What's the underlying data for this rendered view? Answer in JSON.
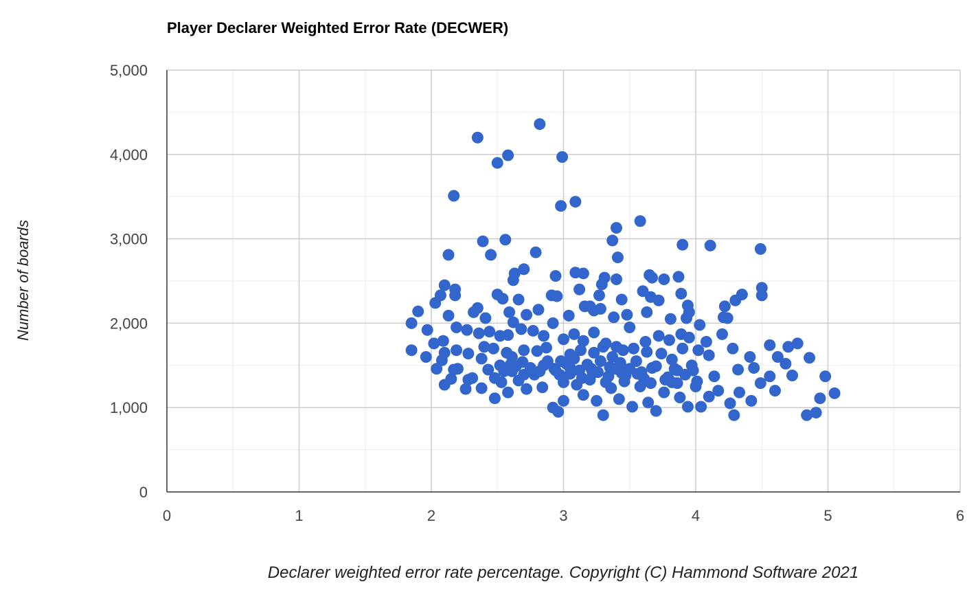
{
  "chart_data": {
    "type": "scatter",
    "title": "Player Declarer Weighted Error Rate (DECWER)",
    "xlabel": "Declarer weighted error rate percentage. Copyright (C) Hammond Software 2021",
    "ylabel": "Number of boards",
    "xlim": [
      0,
      6
    ],
    "ylim": [
      0,
      5000
    ],
    "x_ticks": [
      "0",
      "1",
      "2",
      "3",
      "4",
      "5",
      "6"
    ],
    "y_ticks": [
      "0",
      "1,000",
      "2,000",
      "3,000",
      "4,000",
      "5,000"
    ],
    "grid": true,
    "legend": "none",
    "point_color": "#3366cc",
    "points": [
      [
        2.35,
        4200
      ],
      [
        2.82,
        4360
      ],
      [
        2.5,
        3900
      ],
      [
        2.58,
        3990
      ],
      [
        2.99,
        3970
      ],
      [
        2.98,
        3390
      ],
      [
        3.09,
        3440
      ],
      [
        2.17,
        3510
      ],
      [
        3.58,
        3210
      ],
      [
        3.4,
        3130
      ],
      [
        2.56,
        2990
      ],
      [
        2.39,
        2970
      ],
      [
        3.37,
        2980
      ],
      [
        3.9,
        2930
      ],
      [
        4.11,
        2920
      ],
      [
        4.49,
        2880
      ],
      [
        2.13,
        2810
      ],
      [
        2.45,
        2810
      ],
      [
        2.79,
        2840
      ],
      [
        3.41,
        2780
      ],
      [
        2.7,
        2640
      ],
      [
        2.63,
        2590
      ],
      [
        2.62,
        2510
      ],
      [
        2.94,
        2560
      ],
      [
        3.09,
        2600
      ],
      [
        3.15,
        2590
      ],
      [
        3.31,
        2540
      ],
      [
        3.4,
        2520
      ],
      [
        3.65,
        2570
      ],
      [
        3.67,
        2540
      ],
      [
        3.76,
        2520
      ],
      [
        3.87,
        2550
      ],
      [
        4.35,
        2340
      ],
      [
        4.5,
        2420
      ],
      [
        2.1,
        2450
      ],
      [
        2.18,
        2400
      ],
      [
        2.18,
        2330
      ],
      [
        2.07,
        2330
      ],
      [
        2.03,
        2240
      ],
      [
        2.5,
        2340
      ],
      [
        2.54,
        2290
      ],
      [
        2.66,
        2280
      ],
      [
        2.91,
        2330
      ],
      [
        2.95,
        2320
      ],
      [
        3.12,
        2400
      ],
      [
        3.29,
        2460
      ],
      [
        3.27,
        2330
      ],
      [
        3.44,
        2280
      ],
      [
        3.6,
        2380
      ],
      [
        3.66,
        2310
      ],
      [
        3.72,
        2270
      ],
      [
        3.89,
        2350
      ],
      [
        3.94,
        2210
      ],
      [
        4.22,
        2200
      ],
      [
        4.3,
        2270
      ],
      [
        4.5,
        2330
      ],
      [
        1.9,
        2140
      ],
      [
        2.13,
        2090
      ],
      [
        2.32,
        2130
      ],
      [
        2.35,
        2180
      ],
      [
        2.41,
        2060
      ],
      [
        2.59,
        2130
      ],
      [
        2.62,
        2010
      ],
      [
        2.72,
        2100
      ],
      [
        2.81,
        2160
      ],
      [
        2.92,
        2000
      ],
      [
        3.04,
        2090
      ],
      [
        3.16,
        2200
      ],
      [
        3.2,
        2200
      ],
      [
        3.23,
        2150
      ],
      [
        3.28,
        2170
      ],
      [
        3.38,
        2070
      ],
      [
        3.48,
        2100
      ],
      [
        3.63,
        2130
      ],
      [
        3.81,
        2050
      ],
      [
        3.93,
        2060
      ],
      [
        3.95,
        2130
      ],
      [
        4.03,
        1980
      ],
      [
        4.21,
        2070
      ],
      [
        4.24,
        2060
      ],
      [
        1.85,
        2000
      ],
      [
        1.97,
        1920
      ],
      [
        2.19,
        1950
      ],
      [
        2.27,
        1920
      ],
      [
        2.36,
        1880
      ],
      [
        2.44,
        1900
      ],
      [
        2.52,
        1850
      ],
      [
        2.58,
        1860
      ],
      [
        2.68,
        1930
      ],
      [
        2.77,
        1910
      ],
      [
        2.85,
        1850
      ],
      [
        3.0,
        1810
      ],
      [
        3.08,
        1870
      ],
      [
        3.15,
        1790
      ],
      [
        3.23,
        1890
      ],
      [
        3.32,
        1760
      ],
      [
        3.4,
        1720
      ],
      [
        3.5,
        1950
      ],
      [
        3.62,
        1780
      ],
      [
        3.72,
        1850
      ],
      [
        3.8,
        1800
      ],
      [
        3.89,
        1870
      ],
      [
        3.95,
        1830
      ],
      [
        4.08,
        1780
      ],
      [
        4.2,
        1870
      ],
      [
        1.85,
        1680
      ],
      [
        2.02,
        1760
      ],
      [
        2.09,
        1790
      ],
      [
        2.1,
        1650
      ],
      [
        2.19,
        1680
      ],
      [
        2.28,
        1640
      ],
      [
        2.4,
        1720
      ],
      [
        2.47,
        1700
      ],
      [
        2.57,
        1650
      ],
      [
        2.61,
        1600
      ],
      [
        2.7,
        1680
      ],
      [
        2.8,
        1670
      ],
      [
        2.87,
        1710
      ],
      [
        2.98,
        1550
      ],
      [
        3.05,
        1630
      ],
      [
        3.13,
        1680
      ],
      [
        3.23,
        1650
      ],
      [
        3.3,
        1720
      ],
      [
        3.37,
        1600
      ],
      [
        3.45,
        1680
      ],
      [
        3.53,
        1700
      ],
      [
        3.63,
        1660
      ],
      [
        3.74,
        1640
      ],
      [
        3.82,
        1570
      ],
      [
        3.9,
        1700
      ],
      [
        4.02,
        1680
      ],
      [
        4.1,
        1620
      ],
      [
        4.28,
        1700
      ],
      [
        4.41,
        1600
      ],
      [
        4.56,
        1740
      ],
      [
        4.7,
        1720
      ],
      [
        4.77,
        1760
      ],
      [
        1.96,
        1600
      ],
      [
        2.04,
        1460
      ],
      [
        2.1,
        1270
      ],
      [
        2.15,
        1340
      ],
      [
        2.2,
        1460
      ],
      [
        2.26,
        1220
      ],
      [
        2.31,
        1350
      ],
      [
        2.38,
        1230
      ],
      [
        2.43,
        1450
      ],
      [
        2.48,
        1110
      ],
      [
        2.53,
        1300
      ],
      [
        2.58,
        1180
      ],
      [
        2.64,
        1490
      ],
      [
        2.72,
        1220
      ],
      [
        2.78,
        1390
      ],
      [
        2.84,
        1240
      ],
      [
        2.92,
        1000
      ],
      [
        2.96,
        950
      ],
      [
        3.0,
        1080
      ],
      [
        3.05,
        1400
      ],
      [
        3.1,
        1270
      ],
      [
        3.15,
        1150
      ],
      [
        3.2,
        1330
      ],
      [
        3.25,
        1080
      ],
      [
        3.3,
        910
      ],
      [
        3.36,
        1230
      ],
      [
        3.42,
        1100
      ],
      [
        3.47,
        1380
      ],
      [
        3.52,
        1010
      ],
      [
        3.58,
        1250
      ],
      [
        3.64,
        1060
      ],
      [
        3.7,
        960
      ],
      [
        3.76,
        1180
      ],
      [
        3.82,
        1300
      ],
      [
        3.88,
        1120
      ],
      [
        3.94,
        1010
      ],
      [
        4.0,
        1250
      ],
      [
        4.04,
        1010
      ],
      [
        4.1,
        1130
      ],
      [
        4.17,
        1200
      ],
      [
        4.26,
        1050
      ],
      [
        4.29,
        910
      ],
      [
        4.33,
        1180
      ],
      [
        4.42,
        1080
      ],
      [
        4.49,
        1290
      ],
      [
        4.56,
        1370
      ],
      [
        4.6,
        1200
      ],
      [
        4.68,
        1520
      ],
      [
        4.73,
        1380
      ],
      [
        4.84,
        910
      ],
      [
        4.91,
        940
      ],
      [
        4.94,
        1110
      ],
      [
        4.98,
        1370
      ],
      [
        5.05,
        1170
      ],
      [
        4.86,
        1590
      ],
      [
        4.62,
        1600
      ],
      [
        4.44,
        1470
      ],
      [
        4.32,
        1450
      ],
      [
        4.14,
        1370
      ],
      [
        3.97,
        1500
      ],
      [
        3.86,
        1440
      ],
      [
        3.7,
        1490
      ],
      [
        3.55,
        1550
      ],
      [
        3.43,
        1530
      ],
      [
        3.35,
        1480
      ],
      [
        3.18,
        1510
      ],
      [
        3.05,
        1470
      ],
      [
        2.93,
        1460
      ],
      [
        2.82,
        1430
      ],
      [
        2.69,
        1540
      ],
      [
        2.55,
        1430
      ],
      [
        2.48,
        1350
      ],
      [
        2.38,
        1580
      ],
      [
        2.28,
        1330
      ],
      [
        2.17,
        1450
      ],
      [
        2.08,
        1560
      ],
      [
        2.6,
        1510
      ],
      [
        2.66,
        1320
      ],
      [
        2.75,
        1470
      ],
      [
        2.88,
        1550
      ],
      [
        2.97,
        1390
      ],
      [
        3.08,
        1580
      ],
      [
        3.14,
        1350
      ],
      [
        3.21,
        1460
      ],
      [
        3.28,
        1550
      ],
      [
        3.34,
        1370
      ],
      [
        3.39,
        1460
      ],
      [
        3.46,
        1310
      ],
      [
        3.56,
        1400
      ],
      [
        3.61,
        1340
      ],
      [
        3.67,
        1470
      ],
      [
        3.79,
        1360
      ],
      [
        3.86,
        1290
      ],
      [
        3.92,
        1390
      ],
      [
        4.01,
        1310
      ],
      [
        2.52,
        1500
      ],
      [
        2.7,
        1390
      ],
      [
        2.85,
        1500
      ],
      [
        3.0,
        1300
      ],
      [
        3.12,
        1440
      ],
      [
        3.26,
        1420
      ],
      [
        3.32,
        1300
      ],
      [
        3.5,
        1460
      ],
      [
        3.66,
        1290
      ],
      [
        3.77,
        1330
      ],
      [
        3.98,
        1440
      ],
      [
        2.61,
        1430
      ],
      [
        2.94,
        1440
      ],
      [
        3.22,
        1410
      ],
      [
        3.59,
        1420
      ],
      [
        3.84,
        1460
      ],
      [
        3.02,
        1520
      ],
      [
        3.44,
        1410
      ]
    ]
  }
}
